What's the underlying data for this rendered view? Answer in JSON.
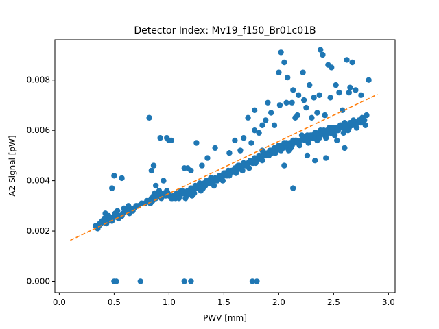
{
  "chart_data": {
    "type": "scatter",
    "title": "Detector Index: Mv19_f150_Br01c01B",
    "xlabel": "PWV [mm]",
    "ylabel": "A2 Signal [pW]",
    "xlim": [
      -0.04,
      3.06
    ],
    "ylim": [
      -0.00045,
      0.0096
    ],
    "xticks": [
      0.0,
      0.5,
      1.0,
      1.5,
      2.0,
      2.5,
      3.0
    ],
    "xtick_labels": [
      "0.0",
      "0.5",
      "1.0",
      "1.5",
      "2.0",
      "2.5",
      "3.0"
    ],
    "yticks": [
      0.0,
      0.002,
      0.004,
      0.006,
      0.008
    ],
    "ytick_labels": [
      "0.000",
      "0.002",
      "0.004",
      "0.006",
      "0.008"
    ],
    "series": [
      {
        "name": "measurements",
        "color": "#1f77b4",
        "x": [
          0.33,
          0.35,
          0.37,
          0.39,
          0.41,
          0.43,
          0.45,
          0.47,
          0.48,
          0.5,
          0.52,
          0.54,
          0.56,
          0.58,
          0.6,
          0.62,
          0.64,
          0.66,
          0.68,
          0.7,
          0.36,
          0.4,
          0.44,
          0.49,
          0.53,
          0.57,
          0.61,
          0.65,
          0.38,
          0.42,
          0.46,
          0.51,
          0.55,
          0.59,
          0.63,
          0.67,
          0.72,
          0.75,
          0.78,
          0.8,
          0.82,
          0.84,
          0.86,
          0.88,
          0.9,
          0.92,
          0.94,
          0.96,
          0.98,
          1.0,
          0.85,
          0.87,
          0.89,
          0.91,
          0.93,
          0.97,
          0.99,
          0.83,
          0.88,
          0.95,
          1.02,
          1.04,
          1.06,
          1.08,
          1.1,
          1.12,
          1.14,
          1.16,
          1.18,
          1.2,
          1.22,
          1.24,
          1.26,
          1.28,
          1.3,
          1.32,
          1.34,
          1.36,
          1.38,
          1.4,
          1.42,
          1.44,
          1.46,
          1.48,
          1.5,
          1.52,
          1.54,
          1.56,
          1.58,
          1.6,
          1.62,
          1.64,
          1.66,
          1.68,
          1.7,
          1.72,
          1.74,
          1.76,
          1.78,
          1.8,
          1.82,
          1.84,
          1.86,
          1.88,
          1.9,
          1.92,
          1.94,
          1.96,
          1.98,
          2.0,
          1.05,
          1.09,
          1.13,
          1.17,
          1.21,
          1.25,
          1.29,
          1.33,
          1.37,
          1.41,
          1.45,
          1.49,
          1.53,
          1.57,
          1.61,
          1.65,
          1.69,
          1.73,
          1.77,
          1.81,
          1.85,
          1.89,
          1.93,
          1.97,
          1.03,
          1.07,
          1.11,
          1.15,
          1.19,
          1.23,
          1.27,
          1.31,
          1.35,
          1.39,
          1.43,
          1.47,
          1.51,
          1.55,
          1.59,
          1.63,
          1.67,
          1.71,
          1.75,
          1.79,
          1.83,
          1.87,
          1.91,
          1.95,
          1.99,
          2.02,
          2.04,
          2.06,
          2.08,
          2.1,
          2.12,
          2.14,
          2.16,
          2.18,
          2.2,
          2.22,
          2.24,
          2.26,
          2.28,
          2.3,
          2.32,
          2.34,
          2.36,
          2.38,
          2.4,
          2.42,
          2.44,
          2.46,
          2.48,
          2.5,
          2.52,
          2.54,
          2.56,
          2.58,
          2.6,
          2.62,
          2.64,
          2.66,
          2.68,
          2.7,
          2.72,
          2.74,
          2.76,
          2.78,
          2.8,
          2.03,
          2.07,
          2.11,
          2.15,
          2.19,
          2.23,
          2.27,
          2.31,
          2.35,
          2.39,
          2.43,
          2.47,
          2.51,
          2.55,
          2.59,
          2.63,
          2.67,
          2.71,
          2.75,
          2.79,
          2.05,
          2.09,
          2.13,
          2.17,
          2.21,
          2.25,
          2.29,
          2.33,
          2.37,
          2.41,
          2.45,
          2.49,
          2.53,
          2.57,
          2.61,
          2.65,
          2.69,
          2.73,
          2.77,
          0.48,
          0.5,
          0.57,
          0.82,
          0.84,
          0.86,
          0.88,
          0.92,
          0.95,
          0.98,
          1.0,
          1.02,
          1.14,
          1.17,
          1.2,
          1.25,
          1.3,
          1.35,
          1.42,
          1.55,
          1.6,
          1.65,
          1.68,
          1.72,
          1.75,
          1.78,
          1.82,
          1.85,
          1.88,
          1.9,
          1.93,
          1.96,
          2.0,
          2.02,
          2.05,
          2.08,
          2.12,
          2.15,
          2.18,
          2.22,
          2.25,
          2.28,
          2.32,
          2.35,
          2.38,
          2.4,
          2.45,
          2.48,
          2.52,
          2.55,
          2.58,
          2.62,
          2.65,
          2.7,
          2.75,
          2.82,
          2.01,
          2.07,
          2.13,
          2.17,
          2.23,
          2.3,
          2.37,
          2.42,
          2.47,
          2.53,
          2.6,
          2.64,
          2.67,
          0.5,
          0.52,
          0.74,
          1.14,
          1.2,
          1.76,
          1.8,
          2.13,
          2.43,
          1.78,
          1.85,
          2.05,
          2.26,
          2.33
        ],
        "y": [
          0.0022,
          0.0021,
          0.0023,
          0.0024,
          0.0025,
          0.0023,
          0.0026,
          0.0025,
          0.0024,
          0.0026,
          0.0027,
          0.0025,
          0.0026,
          0.0027,
          0.0028,
          0.0028,
          0.0027,
          0.0029,
          0.0029,
          0.003,
          0.0022,
          0.0024,
          0.0024,
          0.0025,
          0.0028,
          0.0026,
          0.0029,
          0.0028,
          0.0023,
          0.0027,
          0.0025,
          0.0027,
          0.0026,
          0.0029,
          0.003,
          0.0028,
          0.003,
          0.0031,
          0.0031,
          0.0032,
          0.0032,
          0.0033,
          0.0034,
          0.0033,
          0.0034,
          0.0035,
          0.0034,
          0.0035,
          0.0036,
          0.0034,
          0.0032,
          0.0035,
          0.0034,
          0.0036,
          0.0033,
          0.0034,
          0.0035,
          0.0031,
          0.0033,
          0.0035,
          0.0033,
          0.0034,
          0.0033,
          0.0035,
          0.0034,
          0.0036,
          0.0035,
          0.0034,
          0.0036,
          0.0037,
          0.0036,
          0.0038,
          0.0037,
          0.0039,
          0.0038,
          0.0039,
          0.004,
          0.0039,
          0.0041,
          0.004,
          0.0041,
          0.004,
          0.0042,
          0.0041,
          0.0043,
          0.0042,
          0.0044,
          0.0043,
          0.0044,
          0.0045,
          0.0044,
          0.0046,
          0.0045,
          0.0047,
          0.0046,
          0.0047,
          0.0048,
          0.0047,
          0.0049,
          0.0048,
          0.005,
          0.0049,
          0.0051,
          0.005,
          0.0051,
          0.0052,
          0.0051,
          0.0053,
          0.0052,
          0.0054,
          0.0034,
          0.0033,
          0.0035,
          0.0036,
          0.0034,
          0.0037,
          0.0036,
          0.0038,
          0.0039,
          0.0038,
          0.0041,
          0.004,
          0.0042,
          0.0044,
          0.0043,
          0.0045,
          0.0046,
          0.0045,
          0.0047,
          0.0049,
          0.0048,
          0.005,
          0.0052,
          0.0051,
          0.0033,
          0.0035,
          0.0036,
          0.0033,
          0.0035,
          0.0035,
          0.0038,
          0.0037,
          0.004,
          0.0041,
          0.004,
          0.0042,
          0.0043,
          0.0042,
          0.0044,
          0.0046,
          0.0044,
          0.0046,
          0.0048,
          0.0047,
          0.0049,
          0.0051,
          0.005,
          0.0052,
          0.0053,
          0.0052,
          0.0053,
          0.0054,
          0.0053,
          0.0055,
          0.0054,
          0.0055,
          0.0056,
          0.0055,
          0.0056,
          0.0057,
          0.0056,
          0.0058,
          0.0057,
          0.0058,
          0.0057,
          0.0059,
          0.0058,
          0.006,
          0.0059,
          0.0058,
          0.006,
          0.0061,
          0.0059,
          0.006,
          0.0061,
          0.006,
          0.0062,
          0.0061,
          0.0063,
          0.0062,
          0.0061,
          0.0063,
          0.0064,
          0.0062,
          0.0063,
          0.0064,
          0.0065,
          0.0064,
          0.0066,
          0.0054,
          0.0055,
          0.0053,
          0.0056,
          0.0054,
          0.0057,
          0.0055,
          0.0057,
          0.0056,
          0.0059,
          0.0057,
          0.0059,
          0.0058,
          0.0061,
          0.0059,
          0.006,
          0.0062,
          0.0061,
          0.0063,
          0.0062,
          0.0055,
          0.0052,
          0.0056,
          0.0055,
          0.0058,
          0.0056,
          0.0058,
          0.0059,
          0.0057,
          0.006,
          0.0059,
          0.0061,
          0.006,
          0.0062,
          0.0061,
          0.0063,
          0.0062,
          0.0064,
          0.0063,
          0.0037,
          0.0042,
          0.0041,
          0.0065,
          0.0044,
          0.0046,
          0.0038,
          0.0057,
          0.004,
          0.0057,
          0.0056,
          0.0056,
          0.0045,
          0.0045,
          0.0044,
          0.0055,
          0.0046,
          0.0049,
          0.0053,
          0.0051,
          0.0056,
          0.0052,
          0.0057,
          0.0065,
          0.0055,
          0.0068,
          0.0059,
          0.0062,
          0.0064,
          0.0071,
          0.0067,
          0.0062,
          0.0083,
          0.0091,
          0.0087,
          0.0081,
          0.0071,
          0.0065,
          0.0074,
          0.0083,
          0.0069,
          0.0078,
          0.0073,
          0.0067,
          0.0092,
          0.009,
          0.0086,
          0.0085,
          0.0078,
          0.0075,
          0.0068,
          0.0088,
          0.0077,
          0.0076,
          0.0074,
          0.008,
          0.007,
          0.0071,
          0.0076,
          0.0066,
          0.0072,
          0.0065,
          0.0074,
          0.0066,
          0.0073,
          0.0056,
          0.0053,
          0.0075,
          0.0087,
          0.0,
          0.0,
          0.0,
          0.0,
          0.0,
          0.0,
          0.0,
          0.0037,
          0.0049,
          0.006,
          0.0052,
          0.0046,
          0.005,
          0.0048
        ]
      },
      {
        "name": "fit",
        "color": "#ff7f0e",
        "style": "dashed",
        "x": [
          0.1,
          2.9
        ],
        "y": [
          0.00163,
          0.00743
        ]
      }
    ]
  }
}
